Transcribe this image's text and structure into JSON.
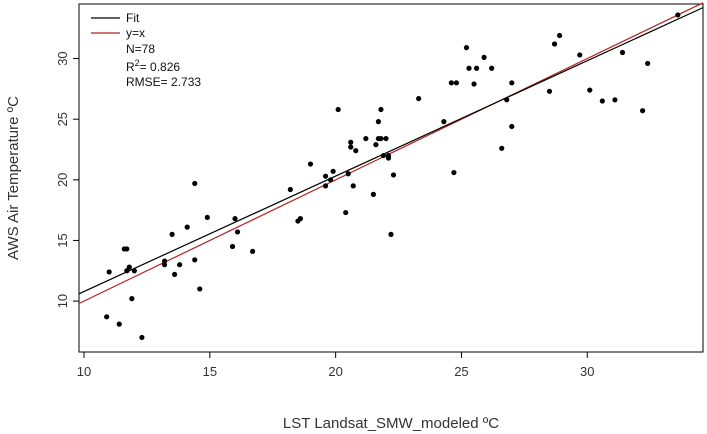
{
  "chart_data": {
    "type": "scatter",
    "xlabel": "LST Landsat_SMW_modeled ºC",
    "ylabel": "AWS Air Temperature ºC",
    "xlim": [
      9.8,
      34.6
    ],
    "ylim": [
      5.8,
      34.5
    ],
    "xticks": [
      "10",
      "15",
      "20",
      "25",
      "30"
    ],
    "yticks": [
      "10",
      "15",
      "20",
      "25",
      "30"
    ],
    "grid": false,
    "legend_position": "top-left",
    "legend": [
      {
        "label": "Fit",
        "color": "#000000"
      },
      {
        "label": "y=x",
        "color": "#b22222"
      }
    ],
    "stats": {
      "n": "N=78",
      "r2_prefix": "R",
      "r2_sup": "2",
      "r2_value": "= 0.826",
      "rmse": "RMSE= 2.733"
    },
    "fit_line": {
      "x": [
        9.8,
        34.6
      ],
      "y": [
        10.6,
        34.2
      ]
    },
    "identity_line": {
      "x": [
        9.8,
        34.6
      ],
      "y": [
        9.8,
        34.6
      ]
    },
    "points": [
      [
        10.9,
        8.7
      ],
      [
        11.0,
        12.4
      ],
      [
        11.4,
        8.1
      ],
      [
        11.6,
        14.3
      ],
      [
        11.7,
        14.3
      ],
      [
        11.7,
        12.5
      ],
      [
        11.8,
        12.8
      ],
      [
        11.9,
        10.2
      ],
      [
        12.0,
        12.5
      ],
      [
        12.3,
        7.0
      ],
      [
        13.2,
        13.3
      ],
      [
        13.2,
        13.0
      ],
      [
        13.5,
        15.5
      ],
      [
        13.6,
        12.2
      ],
      [
        13.8,
        13.0
      ],
      [
        14.1,
        16.1
      ],
      [
        14.4,
        19.7
      ],
      [
        14.4,
        13.4
      ],
      [
        14.6,
        11.0
      ],
      [
        14.9,
        16.9
      ],
      [
        15.9,
        14.5
      ],
      [
        16.0,
        16.8
      ],
      [
        16.1,
        15.7
      ],
      [
        16.7,
        14.1
      ],
      [
        18.2,
        19.2
      ],
      [
        18.5,
        16.6
      ],
      [
        18.6,
        16.8
      ],
      [
        19.0,
        21.3
      ],
      [
        19.6,
        20.3
      ],
      [
        19.6,
        19.5
      ],
      [
        19.8,
        20.0
      ],
      [
        19.9,
        20.7
      ],
      [
        20.1,
        25.8
      ],
      [
        20.4,
        17.3
      ],
      [
        20.5,
        20.5
      ],
      [
        20.6,
        22.7
      ],
      [
        20.6,
        23.1
      ],
      [
        20.7,
        19.5
      ],
      [
        20.8,
        22.4
      ],
      [
        21.2,
        23.4
      ],
      [
        21.5,
        18.8
      ],
      [
        21.6,
        22.9
      ],
      [
        21.7,
        23.4
      ],
      [
        21.7,
        24.8
      ],
      [
        21.8,
        25.8
      ],
      [
        21.8,
        23.4
      ],
      [
        21.9,
        22.0
      ],
      [
        22.0,
        23.4
      ],
      [
        22.1,
        21.8
      ],
      [
        22.1,
        22.0
      ],
      [
        22.2,
        15.5
      ],
      [
        22.3,
        20.4
      ],
      [
        23.3,
        26.7
      ],
      [
        24.3,
        24.8
      ],
      [
        24.6,
        28.0
      ],
      [
        24.7,
        20.6
      ],
      [
        24.8,
        28.0
      ],
      [
        25.2,
        30.9
      ],
      [
        25.3,
        29.2
      ],
      [
        25.5,
        27.9
      ],
      [
        25.6,
        29.2
      ],
      [
        25.9,
        30.1
      ],
      [
        26.2,
        29.2
      ],
      [
        26.6,
        22.6
      ],
      [
        26.8,
        26.6
      ],
      [
        27.0,
        28.0
      ],
      [
        27.0,
        24.4
      ],
      [
        28.5,
        27.3
      ],
      [
        28.7,
        31.2
      ],
      [
        28.9,
        31.9
      ],
      [
        29.7,
        30.3
      ],
      [
        30.1,
        27.4
      ],
      [
        30.6,
        26.5
      ],
      [
        31.1,
        26.6
      ],
      [
        31.4,
        30.5
      ],
      [
        32.2,
        25.7
      ],
      [
        32.4,
        29.6
      ],
      [
        33.6,
        33.6
      ]
    ]
  }
}
